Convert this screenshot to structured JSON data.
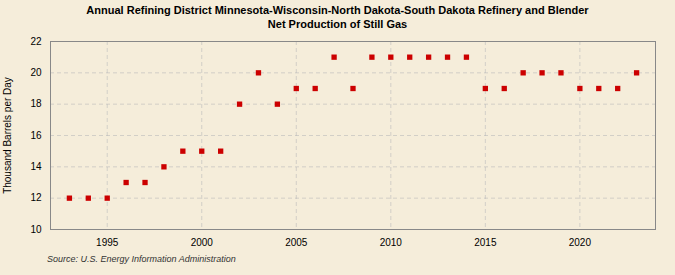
{
  "chart_data": {
    "type": "scatter",
    "title": "Annual Refining District Minnesota-Wisconsin-North Dakota-South Dakota Refinery and Blender\nNet Production of Still Gas",
    "ylabel": "Thousand Barrels per Day",
    "source": "Source: U.S. Energy Information Administration",
    "x": [
      1993,
      1994,
      1995,
      1996,
      1997,
      1998,
      1999,
      2000,
      2001,
      2002,
      2003,
      2004,
      2005,
      2006,
      2007,
      2008,
      2009,
      2010,
      2011,
      2012,
      2013,
      2014,
      2015,
      2016,
      2017,
      2018,
      2019,
      2020,
      2021,
      2022,
      2023
    ],
    "values": [
      12,
      12,
      12,
      13,
      13,
      14,
      15,
      15,
      15,
      18,
      20,
      18,
      19,
      19,
      21,
      19,
      21,
      21,
      21,
      21,
      21,
      21,
      19,
      19,
      20,
      20,
      20,
      19,
      19,
      19,
      20
    ],
    "color": "#cc0000",
    "marker": "square",
    "xlim": [
      1992,
      2024
    ],
    "ylim": [
      10,
      22
    ],
    "xticks": [
      1995,
      2000,
      2005,
      2010,
      2015,
      2020
    ],
    "yticks": [
      10,
      12,
      14,
      16,
      18,
      20,
      22
    ],
    "grid": true
  }
}
